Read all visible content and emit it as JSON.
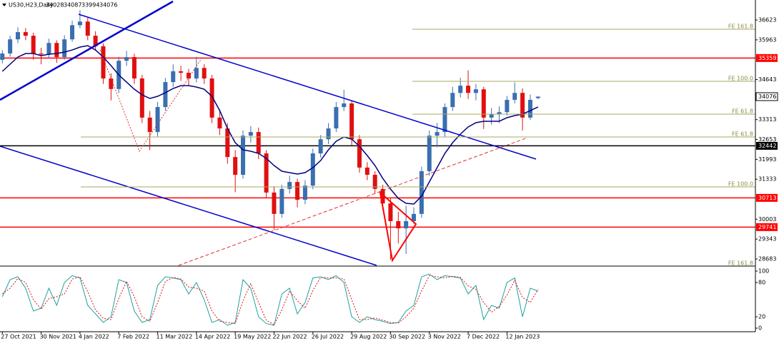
{
  "chart_data": {
    "type": "candlestick",
    "title": "US30,H23,Daily",
    "xlim": [
      -0.3,
      97
    ],
    "ylim": [
      28470,
      37287
    ],
    "yticks": [
      36623,
      35963,
      34643,
      33313,
      32653,
      31993,
      31333,
      30003,
      29343,
      28683
    ],
    "xticks": [
      {
        "value": 0,
        "label": "27 Oct 2021"
      },
      {
        "value": 5,
        "label": "30 Nov 2021"
      },
      {
        "value": 10,
        "label": "4 Jan 2022"
      },
      {
        "value": 15,
        "label": "7 Feb 2022"
      },
      {
        "value": 20,
        "label": "11 Mar 2022"
      },
      {
        "value": 25,
        "label": "14 Apr 2022"
      },
      {
        "value": 30,
        "label": "19 May 2022"
      },
      {
        "value": 35,
        "label": "22 Jun 2022"
      },
      {
        "value": 40,
        "label": "26 Jul 2022"
      },
      {
        "value": 45,
        "label": "29 Aug 2022"
      },
      {
        "value": 50,
        "label": "30 Sep 2022"
      },
      {
        "value": 55,
        "label": "3 Nov 2022"
      },
      {
        "value": 60,
        "label": "7 Dec 2022"
      },
      {
        "value": 65,
        "label": "12 Jan 2023"
      }
    ],
    "up_color": "#3a6fb0",
    "down_color": "#e01010",
    "ma_color": "#000080",
    "candles": [
      [
        35300,
        35620,
        35180,
        35510
      ],
      [
        35510,
        36100,
        35400,
        35980
      ],
      [
        35980,
        36380,
        35850,
        36220
      ],
      [
        36220,
        36350,
        35950,
        36100
      ],
      [
        36100,
        36200,
        35300,
        35510
      ],
      [
        35510,
        35700,
        35150,
        35480
      ],
      [
        35480,
        36000,
        35350,
        35860
      ],
      [
        35860,
        35950,
        35200,
        35390
      ],
      [
        35390,
        36120,
        35300,
        35980
      ],
      [
        35980,
        36600,
        35900,
        36450
      ],
      [
        36450,
        36950,
        36350,
        36570
      ],
      [
        36570,
        36700,
        35950,
        36100
      ],
      [
        36100,
        36250,
        35600,
        35750
      ],
      [
        35750,
        35850,
        34500,
        34680
      ],
      [
        34680,
        34850,
        33950,
        34330
      ],
      [
        34330,
        35400,
        34200,
        35270
      ],
      [
        35270,
        35600,
        35100,
        35390
      ],
      [
        35390,
        35500,
        34500,
        34680
      ],
      [
        34680,
        34800,
        33200,
        33380
      ],
      [
        33380,
        33600,
        32300,
        32900
      ],
      [
        32900,
        33900,
        32750,
        33730
      ],
      [
        33730,
        34700,
        33600,
        34560
      ],
      [
        34560,
        35150,
        34400,
        34920
      ],
      [
        34920,
        35100,
        34600,
        34870
      ],
      [
        34870,
        35000,
        34450,
        34680
      ],
      [
        34680,
        35400,
        34550,
        35030
      ],
      [
        35030,
        35150,
        34500,
        34680
      ],
      [
        34680,
        34800,
        33200,
        33380
      ],
      [
        33380,
        33650,
        32800,
        33020
      ],
      [
        33020,
        33200,
        31850,
        32070
      ],
      [
        32070,
        32300,
        30900,
        31480
      ],
      [
        31480,
        32950,
        31350,
        32780
      ],
      [
        32780,
        33100,
        32550,
        32900
      ],
      [
        32900,
        33050,
        32000,
        32190
      ],
      [
        32190,
        32300,
        30700,
        30890
      ],
      [
        30890,
        31100,
        29650,
        30180
      ],
      [
        30180,
        31150,
        30050,
        31010
      ],
      [
        31010,
        31450,
        30850,
        31240
      ],
      [
        31240,
        31350,
        30400,
        30650
      ],
      [
        30650,
        31300,
        30500,
        31120
      ],
      [
        31120,
        32350,
        31000,
        32190
      ],
      [
        32190,
        32800,
        32050,
        32660
      ],
      [
        32660,
        33200,
        32500,
        33020
      ],
      [
        33020,
        33900,
        32900,
        33730
      ],
      [
        33730,
        34300,
        33600,
        33850
      ],
      [
        33850,
        33950,
        32450,
        32660
      ],
      [
        32660,
        32800,
        31550,
        31720
      ],
      [
        31720,
        31900,
        31300,
        31480
      ],
      [
        31480,
        31600,
        30850,
        31010
      ],
      [
        31010,
        31150,
        30300,
        30530
      ],
      [
        30530,
        30700,
        28660,
        29940
      ],
      [
        29940,
        30250,
        29200,
        29700
      ],
      [
        29700,
        30450,
        28850,
        29940
      ],
      [
        29940,
        30400,
        29850,
        30180
      ],
      [
        30180,
        31750,
        30050,
        31600
      ],
      [
        31600,
        32950,
        31450,
        32780
      ],
      [
        32780,
        33200,
        32400,
        32900
      ],
      [
        32900,
        33850,
        32750,
        33730
      ],
      [
        33730,
        34400,
        33600,
        34200
      ],
      [
        34200,
        34700,
        34050,
        34440
      ],
      [
        34440,
        34950,
        34000,
        34200
      ],
      [
        34200,
        34500,
        33950,
        34320
      ],
      [
        34320,
        34400,
        33000,
        33380
      ],
      [
        33380,
        33700,
        33150,
        33500
      ],
      [
        33500,
        33750,
        33200,
        33560
      ],
      [
        33560,
        34100,
        33450,
        33970
      ],
      [
        33970,
        34550,
        33850,
        34200
      ],
      [
        34200,
        34350,
        32950,
        33380
      ],
      [
        33380,
        34150,
        33300,
        33970
      ],
      [
        34028,
        34087,
        33994,
        34076
      ]
    ],
    "ma": [
      34917,
      35154,
      35391,
      35509,
      35509,
      35438,
      35485,
      35509,
      35556,
      35627,
      35722,
      35770,
      35627,
      35391,
      35106,
      34798,
      34561,
      34324,
      34135,
      34016,
      34087,
      34206,
      34348,
      34443,
      34443,
      34395,
      34324,
      34087,
      33613,
      33020,
      32546,
      32309,
      32262,
      32191,
      32025,
      31788,
      31599,
      31551,
      31504,
      31551,
      31717,
      31954,
      32309,
      32594,
      32736,
      32665,
      32428,
      32120,
      31788,
      31361,
      31006,
      30698,
      30532,
      30508,
      30769,
      31243,
      31717,
      32191,
      32546,
      32831,
      33068,
      33211,
      33258,
      33258,
      33258,
      33377,
      33448,
      33495,
      33613,
      33732
    ],
    "levels": [
      {
        "value": 35359,
        "color": "#ff0000"
      },
      {
        "value": 32442,
        "color": "#000000"
      },
      {
        "value": 30713,
        "color": "#ff0000"
      },
      {
        "value": 29741,
        "color": "#ff0000"
      }
    ],
    "fib_labels": [
      "FE 161.8",
      "FE 100.0",
      "FE 61.8",
      "FE 61.8",
      "FE 100.0",
      "FE 161.8"
    ],
    "stochastic": {
      "ylim": [
        0,
        100
      ],
      "yticks": [
        100,
        80,
        20,
        0
      ],
      "k_color": "#20a0a0",
      "d_color": "#e01010",
      "k": [
        55,
        85,
        90,
        70,
        30,
        35,
        70,
        40,
        80,
        92,
        88,
        40,
        25,
        10,
        20,
        85,
        80,
        30,
        10,
        15,
        75,
        90,
        88,
        85,
        60,
        80,
        50,
        10,
        15,
        5,
        10,
        85,
        70,
        20,
        8,
        5,
        60,
        70,
        25,
        45,
        88,
        90,
        85,
        92,
        80,
        20,
        10,
        20,
        15,
        12,
        8,
        10,
        30,
        40,
        90,
        95,
        85,
        92,
        90,
        88,
        60,
        75,
        15,
        40,
        35,
        80,
        88,
        20,
        70,
        65
      ],
      "d": [
        60,
        70,
        87,
        80,
        50,
        33,
        52,
        55,
        60,
        86,
        90,
        64,
        32,
        17,
        15,
        52,
        82,
        55,
        20,
        12,
        45,
        82,
        89,
        86,
        72,
        70,
        65,
        30,
        12,
        10,
        8,
        48,
        78,
        45,
        14,
        6,
        32,
        65,
        48,
        35,
        66,
        89,
        88,
        88,
        86,
        50,
        15,
        15,
        18,
        14,
        10,
        9,
        20,
        35,
        65,
        92,
        90,
        88,
        91,
        89,
        74,
        68,
        45,
        28,
        38,
        58,
        84,
        54,
        45,
        68
      ]
    }
  }
}
